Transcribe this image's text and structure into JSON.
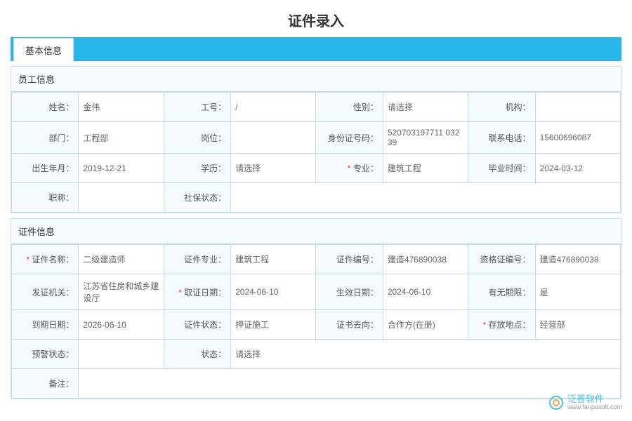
{
  "page": {
    "title": "证件录入"
  },
  "tabs": {
    "basic": "基本信息"
  },
  "employee": {
    "section_title": "员工信息",
    "rows": [
      [
        {
          "label": "姓名：",
          "value": "金伟",
          "required": false
        },
        {
          "label": "工号：",
          "value": "/",
          "required": false
        },
        {
          "label": "性别：",
          "value": "请选择",
          "required": false
        },
        {
          "label": "机构：",
          "value": "",
          "required": false
        }
      ],
      [
        {
          "label": "部门：",
          "value": "工程部",
          "required": false
        },
        {
          "label": "岗位：",
          "value": "",
          "required": false
        },
        {
          "label": "身份证号码：",
          "value": "520703197711\n03239",
          "required": false
        },
        {
          "label": "联系电话：",
          "value": "15600696087",
          "required": false
        }
      ],
      [
        {
          "label": "出生年月：",
          "value": "2019-12-21",
          "required": false
        },
        {
          "label": "学历：",
          "value": "请选择",
          "required": false
        },
        {
          "label": "专业：",
          "value": "建筑工程",
          "required": true
        },
        {
          "label": "毕业时间：",
          "value": "2024-03-12",
          "required": false
        }
      ],
      [
        {
          "label": "职称：",
          "value": "",
          "required": false
        },
        {
          "label": "社保状态：",
          "value": "",
          "required": false
        }
      ]
    ]
  },
  "certificate": {
    "section_title": "证件信息",
    "rows": [
      [
        {
          "label": "证件名称：",
          "value": "二级建造师",
          "required": true
        },
        {
          "label": "证件专业：",
          "value": "建筑工程",
          "required": false
        },
        {
          "label": "证件编号：",
          "value": "建造476890038",
          "required": false
        },
        {
          "label": "资格证编号：",
          "value": "建造476890038",
          "required": false
        }
      ],
      [
        {
          "label": "发证机关：",
          "value": "江苏省住房和城乡建设厅",
          "required": false
        },
        {
          "label": "取证日期：",
          "value": "2024-06-10",
          "required": true
        },
        {
          "label": "生效日期：",
          "value": "2024-06-10",
          "required": false
        },
        {
          "label": "有无期限：",
          "value": "是",
          "required": false
        }
      ],
      [
        {
          "label": "到期日期：",
          "value": "2026-06-10",
          "required": false
        },
        {
          "label": "证件状态：",
          "value": "押证施工",
          "required": false
        },
        {
          "label": "证书去向：",
          "value": "合作方(在册)",
          "required": false
        },
        {
          "label": "存放地点：",
          "value": "经营部",
          "required": true
        }
      ],
      [
        {
          "label": "预警状态：",
          "value": "",
          "required": false
        },
        {
          "label": "状态：",
          "value": "请选择",
          "required": false
        }
      ]
    ],
    "remark": {
      "label": "备注：",
      "value": ""
    }
  },
  "watermark": {
    "brand": "泛普软件",
    "url": "www.fanpusoft.com"
  },
  "colors": {
    "tab_bar_bg": "#29b6e8",
    "border": "#c9dbe6",
    "section_bg": "#f6fbff",
    "required": "#e33"
  }
}
